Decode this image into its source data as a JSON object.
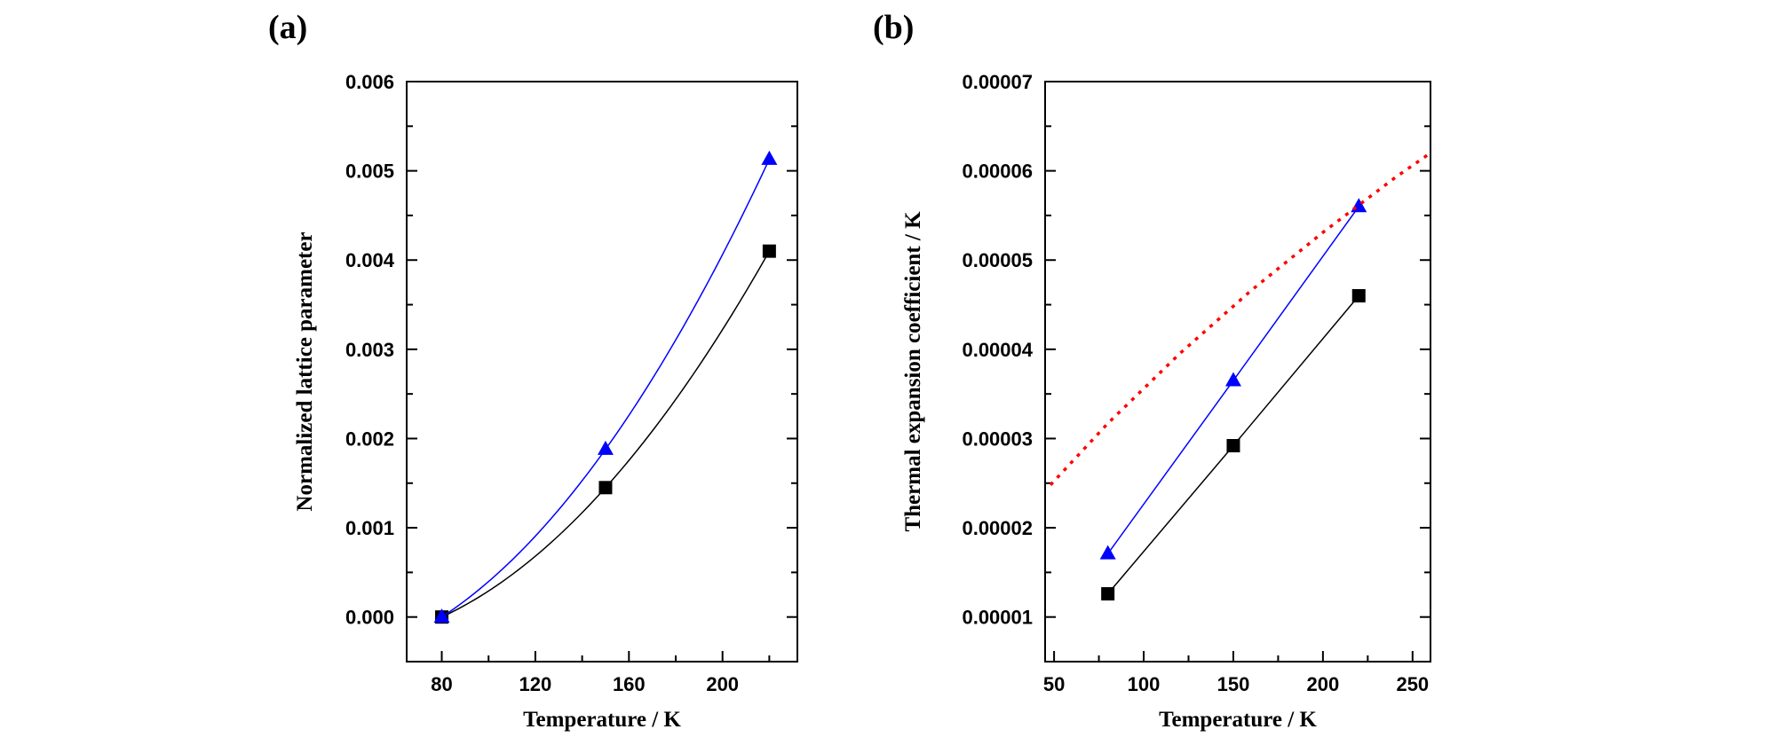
{
  "chart_data": [
    {
      "type": "line",
      "panel_label": "(a)",
      "xlabel": "Temperature / K",
      "ylabel": "Normalized lattice parameter",
      "xlim": [
        65,
        232
      ],
      "ylim": [
        -0.0005,
        0.006
      ],
      "xticks": [
        "80",
        "120",
        "160",
        "200"
      ],
      "yticks": [
        "0.000",
        "0.001",
        "0.002",
        "0.003",
        "0.004",
        "0.005",
        "0.006"
      ],
      "grid": false,
      "series": [
        {
          "marker": "square",
          "color": "#000000",
          "x": [
            80,
            150,
            220
          ],
          "y": [
            0.0,
            0.00145,
            0.0041
          ],
          "fit": "quadratic curve through points"
        },
        {
          "marker": "triangle",
          "color": "#0000ff",
          "x": [
            80,
            150,
            220
          ],
          "y": [
            0.0,
            0.00188,
            0.00513
          ],
          "fit": "quadratic curve through points"
        }
      ]
    },
    {
      "type": "line",
      "panel_label": "(b)",
      "xlabel": "Temperature / K",
      "ylabel": "Thermal expansion coefficient / K",
      "xlim": [
        45,
        260
      ],
      "ylim": [
        5e-06,
        7e-05
      ],
      "xticks": [
        "50",
        "100",
        "150",
        "200",
        "250"
      ],
      "yticks": [
        "0.00001",
        "0.00002",
        "0.00003",
        "0.00004",
        "0.00005",
        "0.00006",
        "0.00007"
      ],
      "grid": false,
      "series": [
        {
          "marker": "square",
          "color": "#000000",
          "x": [
            80,
            150,
            220
          ],
          "y": [
            1.26e-05,
            2.92e-05,
            4.6e-05
          ]
        },
        {
          "marker": "triangle",
          "color": "#0000ff",
          "x": [
            80,
            150,
            220
          ],
          "y": [
            1.71e-05,
            3.65e-05,
            5.6e-05
          ]
        },
        {
          "marker": "none",
          "color": "#ff0000",
          "line_style": "dotted",
          "x": [
            48,
            80,
            120,
            160,
            200,
            240,
            260
          ],
          "y": [
            2.48e-05,
            3.17e-05,
            3.95e-05,
            4.66e-05,
            5.31e-05,
            5.92e-05,
            6.2e-05
          ]
        }
      ]
    }
  ]
}
